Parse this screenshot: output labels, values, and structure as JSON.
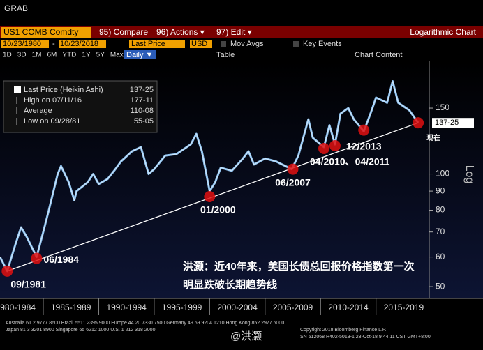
{
  "header": {
    "title": "GRAB"
  },
  "toolbar": {
    "security": "US1 COMB Comdty",
    "buttons": [
      "95) Compare",
      "96) Actions ▾",
      "97) Edit ▾"
    ],
    "chart_type": "Logarithmic Chart"
  },
  "range_bar": {
    "start": "10/23/1980",
    "separator": "-",
    "end": "10/23/2018",
    "field": "Last Price",
    "currency": "USD",
    "mov_avgs": "Mov Avgs",
    "key_events": "Key Events"
  },
  "period_bar": {
    "periods": [
      "1D",
      "3D",
      "1M",
      "6M",
      "YTD",
      "1Y",
      "5Y",
      "Max"
    ],
    "frequency": "Daily ▼",
    "table": "Table",
    "chart_content": "Chart Content"
  },
  "footer": {
    "line1": "Australia 61 2 9777 8600 Brazil 5511 2395 9000 Europe 44 20 7330 7500 Germany 49 69 9204 1210 Hong Kong 852 2977 6000",
    "line2": "Japan 81 3 3201 8900      Singapore 65 6212 1000      U.S. 1 212 318 2000",
    "copyright": "Copyright 2018 Bloomberg Finance L.P.",
    "stamp": "SN 512068 H402-5013-1 23-Oct-18  9:44:11 CST  GMT+8:00"
  },
  "watermark": "@洪灏",
  "chart_data": {
    "type": "line",
    "y_scale": "log",
    "y_label": "Log",
    "xlim": [
      1981.1,
      2019.8
    ],
    "xticks": [
      {
        "value": 1982.5,
        "label": "1980-1984"
      },
      {
        "value": 1987.5,
        "label": "1985-1989"
      },
      {
        "value": 1992.5,
        "label": "1990-1994"
      },
      {
        "value": 1997.5,
        "label": "1995-1999"
      },
      {
        "value": 2002.5,
        "label": "2000-2004"
      },
      {
        "value": 2007.5,
        "label": "2005-2009"
      },
      {
        "value": 2012.5,
        "label": "2010-2014"
      },
      {
        "value": 2017.5,
        "label": "2015-2019"
      }
    ],
    "ylim": [
      46.5,
      200
    ],
    "yticks": [
      50,
      60,
      70,
      80,
      90,
      100,
      150
    ],
    "series": [
      {
        "name": "Last Price (Heikin Ashi)",
        "color": "#8fc3f0",
        "x": [
          1981.1,
          1981.75,
          1982.5,
          1983,
          1983.5,
          1984.4,
          1985,
          1985.5,
          1986.3,
          1986.6,
          1987.3,
          1987.8,
          1988,
          1989,
          1989.5,
          1990,
          1990.8,
          1991.5,
          1992,
          1993,
          1993.8,
          1994.5,
          1995,
          1996,
          1997,
          1998.3,
          1998.8,
          1999.3,
          2000,
          2000.5,
          2001,
          2002,
          2003,
          2003.5,
          2004,
          2005,
          2006,
          2007.4,
          2008,
          2008.9,
          2009.3,
          2010,
          2010.3,
          2010.8,
          2011.3,
          2011.8,
          2012.5,
          2013,
          2013.9,
          2014.5,
          2015,
          2016,
          2016.5,
          2017,
          2018,
          2018.8
        ],
        "values": [
          60,
          55,
          65,
          72,
          68,
          60,
          70,
          80,
          100,
          105,
          95,
          85,
          90,
          95,
          100,
          94,
          97,
          103,
          108,
          115,
          118,
          100,
          103,
          112,
          113,
          120,
          128,
          115,
          90,
          95,
          104,
          102,
          110,
          115,
          106,
          110,
          108,
          103,
          112,
          140,
          125,
          120,
          118,
          135,
          120,
          145,
          150,
          140,
          130,
          145,
          160,
          155,
          177,
          155,
          148,
          137
        ]
      }
    ],
    "trend_line": {
      "x": [
        1981.75,
        2018.8
      ],
      "values": [
        55,
        137
      ],
      "color": "#ffffff"
    },
    "annotations": [
      {
        "label": "09/1981",
        "x": 1981.75,
        "y": 55
      },
      {
        "label": "06/1984",
        "x": 1984.4,
        "y": 59.5
      },
      {
        "label": "01/2000",
        "x": 2000,
        "y": 87
      },
      {
        "label": "06/2007",
        "x": 2007.5,
        "y": 103
      },
      {
        "label": "04/2010、04/2011",
        "x": 2010.3,
        "y": 117
      },
      {
        "x": 2011.3,
        "y": 119
      },
      {
        "label": "12/2013",
        "x": 2013.9,
        "y": 131
      },
      {
        "label": "现在",
        "x": 2018.8,
        "y": 137
      }
    ],
    "current_value_label": "137-25",
    "legend_box": [
      {
        "label": "Last Price (Heikin Ashi)",
        "value": "137-25"
      },
      {
        "label": "High on 07/11/16",
        "value": "177-11"
      },
      {
        "label": "Average",
        "value": "110-08"
      },
      {
        "label": "Low on 09/28/81",
        "value": "55-05"
      }
    ],
    "note": [
      "洪灏：近40年来，美国长债总回报价格指数第一次",
      "明显跌破长期趋势线"
    ]
  }
}
